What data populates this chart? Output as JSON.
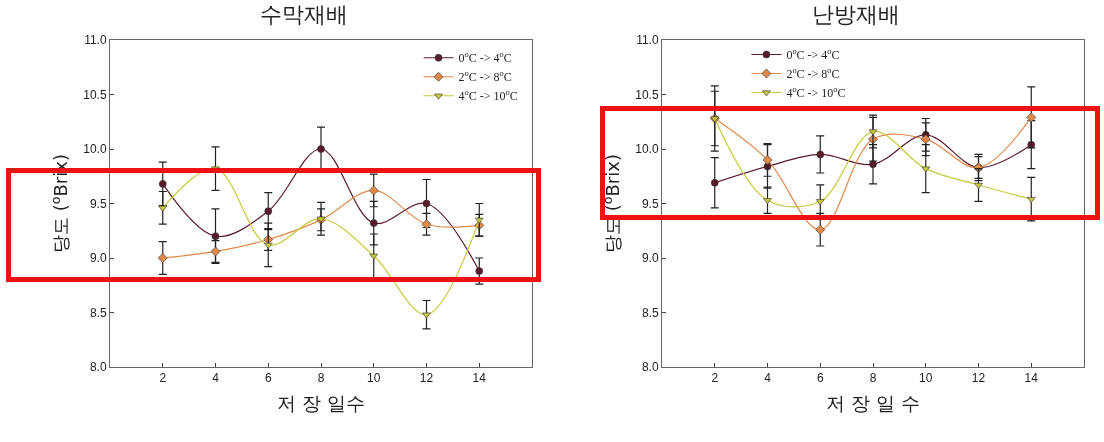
{
  "chart_data": [
    {
      "type": "line",
      "title": "수막재배",
      "xlabel": "저 장 일수",
      "ylabel": "당도 ($^{o}$Brix)",
      "x": [
        2,
        4,
        6,
        8,
        10,
        12,
        14
      ],
      "xlim": [
        0,
        16
      ],
      "xticks": [
        2,
        4,
        6,
        8,
        10,
        12,
        14
      ],
      "ylim": [
        8.0,
        11.0
      ],
      "yticks": [
        {
          "value": 8.0,
          "label": "8.0"
        },
        8.5,
        {
          "value": 9.0,
          "label": "9.0"
        },
        9.5,
        {
          "value": 10.0,
          "label": "10.0"
        },
        10.5,
        {
          "value": 11.0,
          "label": "11.0"
        }
      ],
      "grid": false,
      "legend": "top right",
      "series": [
        {
          "name": "0$^{o}$C -> 4$^{o}$C",
          "color": "#5a1a2a",
          "marker": "circle",
          "values": [
            9.68,
            9.2,
            9.43,
            10.0,
            9.32,
            9.5,
            8.88
          ],
          "errors": [
            0.2,
            0.25,
            0.17,
            0.2,
            0.2,
            0.22,
            0.12
          ]
        },
        {
          "name": "2$^{o}$C -> 8$^{o}$C",
          "color": "#e08a4a",
          "marker": "diamond",
          "values": [
            9.0,
            9.06,
            9.17,
            9.35,
            9.62,
            9.31,
            9.3
          ],
          "errors": [
            0.15,
            0.1,
            0.1,
            0.1,
            0.15,
            0.1,
            0.1
          ]
        },
        {
          "name": "4$^{o}$C -> 10$^{o}$C",
          "color": "#c8c83a",
          "marker": "triangle",
          "values": [
            9.46,
            9.82,
            9.12,
            9.36,
            9.02,
            8.48,
            9.35
          ],
          "errors": [
            0.15,
            0.2,
            0.2,
            0.15,
            0.2,
            0.13,
            0.15
          ]
        }
      ]
    },
    {
      "type": "line",
      "title": "난방재배",
      "xlabel": "저 장 일 수",
      "ylabel": "당도 ($^{o}$Brix)",
      "x": [
        2,
        4,
        6,
        8,
        10,
        12,
        14
      ],
      "xlim": [
        0,
        16
      ],
      "xticks": [
        2,
        4,
        6,
        8,
        10,
        12,
        14
      ],
      "ylim": [
        8.0,
        11.0
      ],
      "yticks": [
        {
          "value": 8.0,
          "label": "8.0"
        },
        8.5,
        {
          "value": 9.0,
          "label": "9.0"
        },
        9.5,
        {
          "value": 10.0,
          "label": "10.0"
        },
        10.5,
        {
          "value": 11.0,
          "label": "11.0"
        }
      ],
      "grid": false,
      "legend": "top left",
      "series": [
        {
          "name": "0$^{o}$C -> 4$^{o}$C",
          "color": "#5a1a2a",
          "marker": "circle",
          "values": [
            9.69,
            9.84,
            9.95,
            9.86,
            10.13,
            9.83,
            10.04
          ],
          "errors": [
            0.23,
            0.2,
            0.17,
            0.18,
            0.15,
            0.12,
            0.22
          ]
        },
        {
          "name": "2$^{o}$C -> 8$^{o}$C",
          "color": "#e08a4a",
          "marker": "diamond",
          "values": [
            10.28,
            9.9,
            9.26,
            10.09,
            10.09,
            9.83,
            10.29
          ],
          "errors": [
            0.3,
            0.15,
            0.15,
            0.2,
            0.15,
            0.1,
            0.28
          ]
        },
        {
          "name": "4$^{o}$C -> 10$^{o}$C",
          "color": "#c8c83a",
          "marker": "triangle",
          "values": [
            10.28,
            9.53,
            9.52,
            10.16,
            9.82,
            9.67,
            9.54
          ],
          "errors": [
            0.25,
            0.12,
            0.15,
            0.15,
            0.22,
            0.15,
            0.2
          ]
        }
      ]
    }
  ]
}
